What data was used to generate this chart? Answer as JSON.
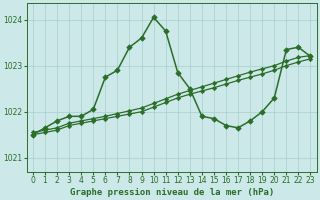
{
  "title": "Graphe pression niveau de la mer (hPa)",
  "bg_color": "#cce8e8",
  "line_color": "#2a6e2a",
  "grid_color": "#a8cece",
  "ylim": [
    1020.7,
    1024.35
  ],
  "yticks": [
    1021,
    1022,
    1023,
    1024
  ],
  "xlim": [
    -0.5,
    23.5
  ],
  "xticks": [
    0,
    1,
    2,
    3,
    4,
    5,
    6,
    7,
    8,
    9,
    10,
    11,
    12,
    13,
    14,
    15,
    16,
    17,
    18,
    19,
    20,
    21,
    22,
    23
  ],
  "series": [
    {
      "x": [
        0,
        1,
        2,
        3,
        4,
        5,
        6,
        7,
        8,
        9,
        10,
        11,
        12,
        13,
        14,
        15,
        16,
        17,
        18,
        19,
        20,
        21,
        22,
        23
      ],
      "y": [
        1021.5,
        1021.65,
        1021.8,
        1021.9,
        1021.9,
        1022.05,
        1022.75,
        1022.9,
        1023.4,
        1023.6,
        1024.05,
        1023.75,
        1022.85,
        1022.5,
        1021.9,
        1021.85,
        1021.7,
        1021.65,
        1021.8,
        1022.0,
        1022.3,
        1023.35,
        1023.4,
        1023.2
      ],
      "marker": "D",
      "markersize": 2.8,
      "linewidth": 1.1
    },
    {
      "x": [
        0,
        1,
        2,
        3,
        4,
        5,
        6,
        7,
        8,
        9,
        10,
        11,
        12,
        13,
        14,
        15,
        16,
        17,
        18,
        19,
        20,
        21,
        22,
        23
      ],
      "y": [
        1021.5,
        1021.55,
        1021.6,
        1021.7,
        1021.75,
        1021.8,
        1021.85,
        1021.9,
        1021.95,
        1022.0,
        1022.1,
        1022.2,
        1022.3,
        1022.38,
        1022.45,
        1022.52,
        1022.6,
        1022.68,
        1022.75,
        1022.82,
        1022.9,
        1023.0,
        1023.08,
        1023.15
      ],
      "marker": "D",
      "markersize": 2.2,
      "linewidth": 0.9
    },
    {
      "x": [
        0,
        1,
        2,
        3,
        4,
        5,
        6,
        7,
        8,
        9,
        10,
        11,
        12,
        13,
        14,
        15,
        16,
        17,
        18,
        19,
        20,
        21,
        22,
        23
      ],
      "y": [
        1021.55,
        1021.6,
        1021.65,
        1021.75,
        1021.8,
        1021.85,
        1021.9,
        1021.96,
        1022.02,
        1022.08,
        1022.18,
        1022.28,
        1022.38,
        1022.46,
        1022.54,
        1022.62,
        1022.7,
        1022.78,
        1022.86,
        1022.93,
        1023.0,
        1023.1,
        1023.18,
        1023.22
      ],
      "marker": "D",
      "markersize": 2.2,
      "linewidth": 0.9
    }
  ],
  "tick_fontsize": 5.5,
  "xlabel_fontsize": 6.5
}
